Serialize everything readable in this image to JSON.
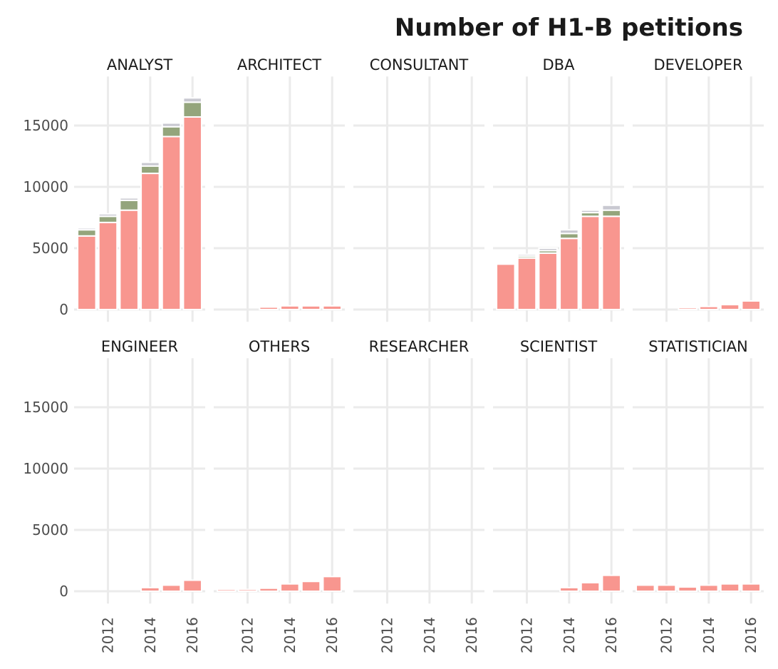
{
  "chart_data": {
    "type": "bar",
    "stacked": true,
    "facet": {
      "rows": 2,
      "cols": 5,
      "shared_y": true
    },
    "title": "Number of H1-B petitions",
    "xlabel": "",
    "ylabel": "",
    "x": [
      2011,
      2012,
      2013,
      2014,
      2015,
      2016
    ],
    "x_ticks": [
      "2012",
      "2014",
      "2016"
    ],
    "y_ticks": [
      "0",
      "5000",
      "10000",
      "15000"
    ],
    "ylim": [
      -1000,
      19000
    ],
    "grid": true,
    "legend": "none",
    "series_colors": [
      "#f8968f",
      "#94a57c",
      "#c9c9d1"
    ],
    "panels": [
      {
        "name": "ANALYST",
        "stacks": [
          [
            6000,
            500,
            150
          ],
          [
            7100,
            500,
            200
          ],
          [
            8100,
            800,
            200
          ],
          [
            11100,
            600,
            300
          ],
          [
            14100,
            800,
            300
          ],
          [
            15700,
            1200,
            350
          ]
        ]
      },
      {
        "name": "ARCHITECT",
        "stacks": [
          [
            0,
            0,
            0
          ],
          [
            0,
            0,
            0
          ],
          [
            200,
            0,
            0
          ],
          [
            300,
            0,
            0
          ],
          [
            300,
            0,
            0
          ],
          [
            300,
            0,
            0
          ]
        ]
      },
      {
        "name": "CONSULTANT",
        "stacks": [
          [
            0,
            0,
            0
          ],
          [
            0,
            0,
            0
          ],
          [
            0,
            0,
            0
          ],
          [
            0,
            0,
            0
          ],
          [
            0,
            0,
            0
          ],
          [
            0,
            0,
            0
          ]
        ]
      },
      {
        "name": "DBA",
        "stacks": [
          [
            3700,
            0,
            0
          ],
          [
            4200,
            150,
            150
          ],
          [
            4600,
            200,
            200
          ],
          [
            5800,
            400,
            300
          ],
          [
            7600,
            300,
            200
          ],
          [
            7600,
            500,
            400
          ]
        ]
      },
      {
        "name": "DEVELOPER",
        "stacks": [
          [
            0,
            0,
            0
          ],
          [
            0,
            0,
            0
          ],
          [
            150,
            0,
            0
          ],
          [
            250,
            0,
            0
          ],
          [
            400,
            0,
            0
          ],
          [
            700,
            0,
            0
          ]
        ]
      },
      {
        "name": "ENGINEER",
        "stacks": [
          [
            0,
            0,
            0
          ],
          [
            0,
            0,
            0
          ],
          [
            0,
            0,
            0
          ],
          [
            300,
            0,
            0
          ],
          [
            500,
            0,
            0
          ],
          [
            900,
            0,
            0
          ]
        ]
      },
      {
        "name": "OTHERS",
        "stacks": [
          [
            150,
            0,
            0
          ],
          [
            150,
            0,
            0
          ],
          [
            250,
            0,
            0
          ],
          [
            600,
            0,
            0
          ],
          [
            800,
            0,
            0
          ],
          [
            1200,
            0,
            0
          ]
        ]
      },
      {
        "name": "RESEARCHER",
        "stacks": [
          [
            0,
            0,
            0
          ],
          [
            0,
            0,
            0
          ],
          [
            0,
            0,
            0
          ],
          [
            0,
            0,
            0
          ],
          [
            0,
            0,
            0
          ],
          [
            0,
            0,
            0
          ]
        ]
      },
      {
        "name": "SCIENTIST",
        "stacks": [
          [
            0,
            0,
            0
          ],
          [
            0,
            0,
            0
          ],
          [
            0,
            0,
            0
          ],
          [
            300,
            0,
            0
          ],
          [
            700,
            0,
            0
          ],
          [
            1300,
            0,
            0
          ]
        ]
      },
      {
        "name": "STATISTICIAN",
        "stacks": [
          [
            500,
            0,
            0
          ],
          [
            500,
            0,
            0
          ],
          [
            350,
            0,
            0
          ],
          [
            500,
            0,
            0
          ],
          [
            600,
            0,
            0
          ],
          [
            600,
            0,
            0
          ]
        ]
      }
    ]
  }
}
